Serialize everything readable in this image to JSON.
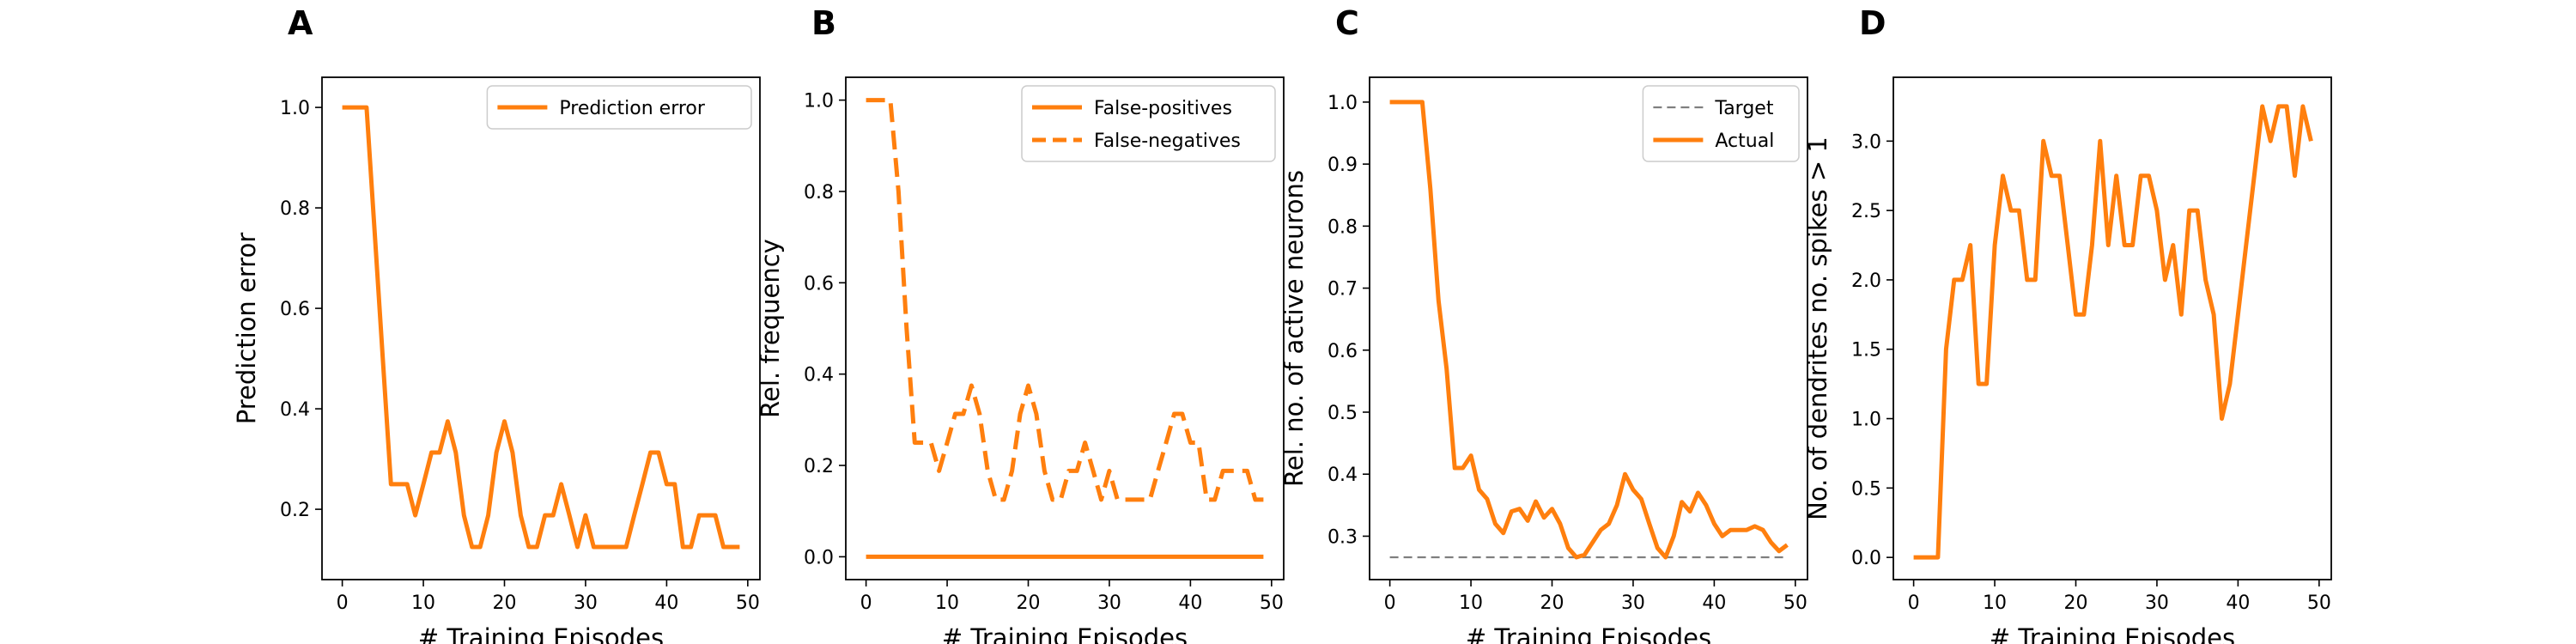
{
  "chart_data": [
    {
      "type": "line",
      "panel_label": "A",
      "xlabel": "# Training Episodes",
      "ylabel": "Prediction error",
      "xlim": [
        -2.5,
        51.5
      ],
      "ylim": [
        0.06,
        1.06
      ],
      "xticks": [
        0,
        10,
        20,
        30,
        40,
        50
      ],
      "yticks": [
        0.2,
        0.4,
        0.6,
        0.8,
        1.0
      ],
      "ytick_format": 1,
      "legend_position": "top-right",
      "series": [
        {
          "name": "Prediction error",
          "color": "#ff7f0e",
          "dash": "solid",
          "x": [
            0,
            1,
            2,
            3,
            4,
            5,
            6,
            7,
            8,
            9,
            10,
            11,
            12,
            13,
            14,
            15,
            16,
            17,
            18,
            19,
            20,
            21,
            22,
            23,
            24,
            25,
            26,
            27,
            28,
            29,
            30,
            31,
            32,
            33,
            34,
            35,
            36,
            37,
            38,
            39,
            40,
            41,
            42,
            43,
            44,
            45,
            46,
            47,
            48,
            49
          ],
          "y": [
            1.0,
            1.0,
            1.0,
            1.0,
            0.75,
            0.5,
            0.25,
            0.25,
            0.25,
            0.188,
            0.25,
            0.313,
            0.313,
            0.375,
            0.313,
            0.188,
            0.125,
            0.125,
            0.188,
            0.313,
            0.375,
            0.313,
            0.188,
            0.125,
            0.125,
            0.188,
            0.188,
            0.25,
            0.188,
            0.125,
            0.188,
            0.125,
            0.125,
            0.125,
            0.125,
            0.125,
            0.188,
            0.25,
            0.313,
            0.313,
            0.25,
            0.25,
            0.125,
            0.125,
            0.188,
            0.188,
            0.188,
            0.125,
            0.125,
            0.125
          ]
        }
      ]
    },
    {
      "type": "line",
      "panel_label": "B",
      "xlabel": "# Training Episodes",
      "ylabel": "Rel. frequency",
      "xlim": [
        -2.5,
        51.5
      ],
      "ylim": [
        -0.05,
        1.05
      ],
      "xticks": [
        0,
        10,
        20,
        30,
        40,
        50
      ],
      "yticks": [
        0.0,
        0.2,
        0.4,
        0.6,
        0.8,
        1.0
      ],
      "ytick_format": 1,
      "legend_position": "top-right",
      "series": [
        {
          "name": "False-positives",
          "color": "#ff7f0e",
          "dash": "solid",
          "x": [
            0,
            49
          ],
          "y": [
            0.0,
            0.0
          ]
        },
        {
          "name": "False-negatives",
          "color": "#ff7f0e",
          "dash": "dashed",
          "x": [
            0,
            1,
            2,
            3,
            4,
            5,
            6,
            7,
            8,
            9,
            10,
            11,
            12,
            13,
            14,
            15,
            16,
            17,
            18,
            19,
            20,
            21,
            22,
            23,
            24,
            25,
            26,
            27,
            28,
            29,
            30,
            31,
            32,
            33,
            34,
            35,
            36,
            37,
            38,
            39,
            40,
            41,
            42,
            43,
            44,
            45,
            46,
            47,
            48,
            49
          ],
          "y": [
            1.0,
            1.0,
            1.0,
            1.0,
            0.8,
            0.5,
            0.25,
            0.25,
            0.25,
            0.188,
            0.25,
            0.313,
            0.313,
            0.375,
            0.313,
            0.188,
            0.125,
            0.125,
            0.188,
            0.313,
            0.375,
            0.313,
            0.188,
            0.125,
            0.125,
            0.188,
            0.188,
            0.25,
            0.188,
            0.125,
            0.188,
            0.125,
            0.125,
            0.125,
            0.125,
            0.125,
            0.188,
            0.25,
            0.313,
            0.313,
            0.25,
            0.25,
            0.125,
            0.125,
            0.188,
            0.188,
            0.188,
            0.188,
            0.125,
            0.125
          ]
        }
      ]
    },
    {
      "type": "line",
      "panel_label": "C",
      "xlabel": "# Training Episodes",
      "ylabel": "Rel. no. of active neurons",
      "xlim": [
        -2.5,
        51.5
      ],
      "ylim": [
        0.23,
        1.04
      ],
      "xticks": [
        0,
        10,
        20,
        30,
        40,
        50
      ],
      "yticks": [
        0.3,
        0.4,
        0.5,
        0.6,
        0.7,
        0.8,
        0.9,
        1.0
      ],
      "ytick_format": 1,
      "legend_position": "top-right",
      "series": [
        {
          "name": "Target",
          "color": "#7f7f7f",
          "dash": "dashed",
          "x": [
            0,
            49
          ],
          "y": [
            0.266,
            0.266
          ]
        },
        {
          "name": "Actual",
          "color": "#ff7f0e",
          "dash": "solid",
          "x": [
            0,
            1,
            2,
            3,
            4,
            5,
            6,
            7,
            8,
            9,
            10,
            11,
            12,
            13,
            14,
            15,
            16,
            17,
            18,
            19,
            20,
            21,
            22,
            23,
            24,
            25,
            26,
            27,
            28,
            29,
            30,
            31,
            32,
            33,
            34,
            35,
            36,
            37,
            38,
            39,
            40,
            41,
            42,
            43,
            44,
            45,
            46,
            47,
            48,
            49
          ],
          "y": [
            1.0,
            1.0,
            1.0,
            1.0,
            1.0,
            0.86,
            0.68,
            0.57,
            0.41,
            0.41,
            0.43,
            0.375,
            0.36,
            0.32,
            0.305,
            0.34,
            0.344,
            0.325,
            0.356,
            0.33,
            0.344,
            0.32,
            0.281,
            0.266,
            0.27,
            0.29,
            0.31,
            0.32,
            0.35,
            0.4,
            0.375,
            0.36,
            0.32,
            0.281,
            0.266,
            0.3,
            0.355,
            0.34,
            0.37,
            0.35,
            0.32,
            0.3,
            0.31,
            0.31,
            0.31,
            0.316,
            0.31,
            0.29,
            0.276,
            0.286
          ]
        }
      ]
    },
    {
      "type": "line",
      "panel_label": "D",
      "xlabel": "# Training Episodes",
      "ylabel": "No. of dendrites no. spikes > 1",
      "xlim": [
        -2.5,
        51.5
      ],
      "ylim": [
        -0.16,
        3.46
      ],
      "xticks": [
        0,
        10,
        20,
        30,
        40,
        50
      ],
      "yticks": [
        0.0,
        0.5,
        1.0,
        1.5,
        2.0,
        2.5,
        3.0
      ],
      "ytick_format": 1,
      "legend_position": "none",
      "series": [
        {
          "name": "",
          "color": "#ff7f0e",
          "dash": "solid",
          "x": [
            0,
            1,
            2,
            3,
            4,
            5,
            6,
            7,
            8,
            9,
            10,
            11,
            12,
            13,
            14,
            15,
            16,
            17,
            18,
            19,
            20,
            21,
            22,
            23,
            24,
            25,
            26,
            27,
            28,
            29,
            30,
            31,
            32,
            33,
            34,
            35,
            36,
            37,
            38,
            39,
            40,
            41,
            42,
            43,
            44,
            45,
            46,
            47,
            48,
            49
          ],
          "y": [
            0.0,
            0.0,
            0.0,
            0.0,
            1.5,
            2.0,
            2.0,
            2.25,
            1.25,
            1.25,
            2.25,
            2.75,
            2.5,
            2.5,
            2.0,
            2.0,
            3.0,
            2.75,
            2.75,
            2.25,
            1.75,
            1.75,
            2.25,
            3.0,
            2.25,
            2.75,
            2.25,
            2.25,
            2.75,
            2.75,
            2.5,
            2.0,
            2.25,
            1.75,
            2.5,
            2.5,
            2.0,
            1.75,
            1.0,
            1.25,
            1.75,
            2.25,
            2.75,
            3.25,
            3.0,
            3.25,
            3.25,
            2.75,
            3.25,
            3.0
          ]
        }
      ]
    }
  ]
}
